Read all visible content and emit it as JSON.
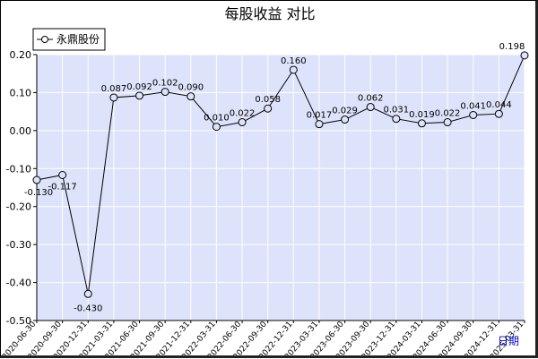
{
  "chart_data": {
    "type": "line",
    "title": "每股收益  对比",
    "xlabel": "日期",
    "ylabel": "",
    "ylim": [
      -0.5,
      0.2
    ],
    "yticks": [
      "0.20",
      "0.10",
      "0.00",
      "-0.10",
      "-0.20",
      "-0.30",
      "-0.40",
      "-0.50"
    ],
    "grid": true,
    "legend_position": "top-left",
    "colors": {
      "plot_bg": "#dde3fa",
      "grid": "#ffffff",
      "line": "#000000",
      "marker_fill": "#dde3fa",
      "y_tick_text": "#000000",
      "x_tick_text": "#000000",
      "xlabel_text": "#0000cc"
    },
    "categories": [
      "2020-06-30",
      "2020-09-30",
      "2020-12-31",
      "2021-03-31",
      "2021-06-30",
      "2021-09-30",
      "2021-12-31",
      "2022-03-31",
      "2022-06-30",
      "2022-09-30",
      "2022-12-31",
      "2023-03-31",
      "2023-06-30",
      "2023-09-30",
      "2023-12-31",
      "2024-03-31",
      "2024-06-30",
      "2024-09-30",
      "2024-12-31",
      "2025-03-31"
    ],
    "series": [
      {
        "name": "永鼎股份",
        "values": [
          -0.13,
          -0.117,
          -0.43,
          0.087,
          0.092,
          0.102,
          0.09,
          0.01,
          0.022,
          0.058,
          0.16,
          0.017,
          0.029,
          0.062,
          0.031,
          0.019,
          0.022,
          0.041,
          0.044,
          0.198
        ],
        "labels": [
          "-0.130",
          "-0.117",
          "-0.430",
          "0.087",
          "0.092",
          "0.102",
          "0.090",
          "0.010",
          "0.022",
          "0.058",
          "0.160",
          "0.017",
          "0.029",
          "0.062",
          "0.031",
          "0.019",
          "0.022",
          "0.041",
          "0.044",
          "0.198"
        ]
      }
    ]
  }
}
